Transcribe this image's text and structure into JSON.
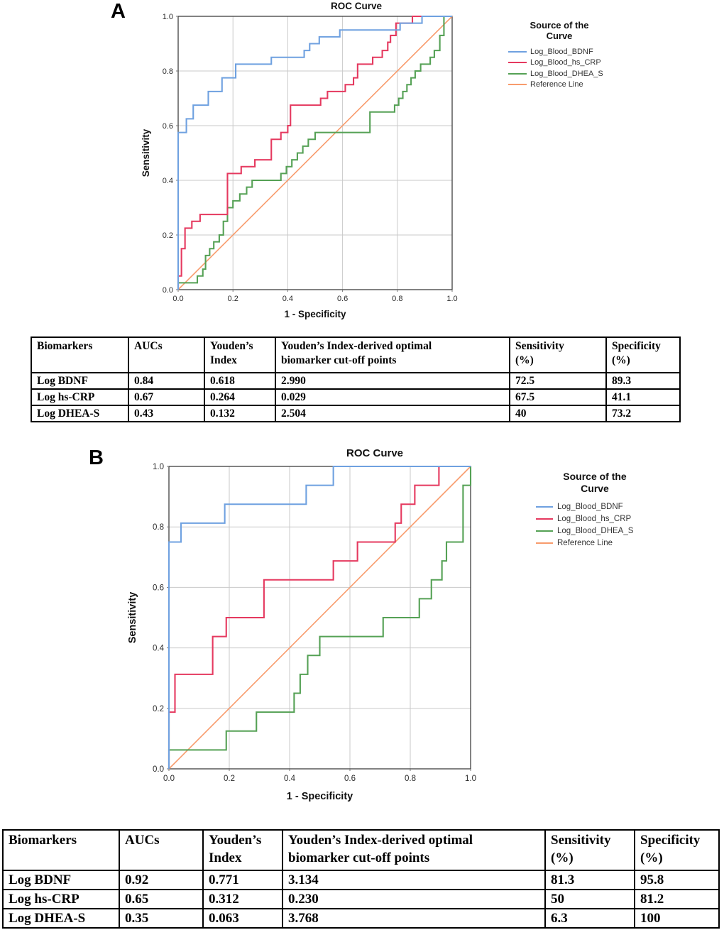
{
  "panel_a": {
    "label": "A",
    "legend": {
      "title": "Source of the\nCurve",
      "items": [
        "Log_Blood_BDNF",
        "Log_Blood_hs_CRP",
        "Log_Blood_DHEA_S",
        "Reference Line"
      ]
    }
  },
  "panel_b": {
    "label": "B",
    "legend": {
      "title": "Source of the\nCurve",
      "items": [
        "Log_Blood_BDNF",
        "Log_Blood_hs_CRP",
        "Log_Blood_DHEA_S",
        "Reference Line"
      ]
    }
  },
  "colors": {
    "bdnf": "#6fa1e0",
    "hscrp": "#e5395f",
    "dheas": "#55a155",
    "reference": "#f89b6c",
    "grid": "#cacaca",
    "frame": "#3f3f3f",
    "tick_text": "#2b2b2b"
  },
  "chart_data": [
    {
      "panel": "A",
      "type": "line",
      "subtype": "roc_step",
      "title": "ROC Curve",
      "xlabel": "1 - Specificity",
      "ylabel": "Sensitivity",
      "xlim": [
        0,
        1
      ],
      "ylim": [
        0,
        1
      ],
      "xticks": [
        0.0,
        0.2,
        0.4,
        0.6,
        0.8,
        1.0
      ],
      "yticks": [
        0.0,
        0.2,
        0.4,
        0.6,
        0.8,
        1.0
      ],
      "grid": true,
      "legend_position": "right",
      "series": [
        {
          "name": "Log_Blood_BDNF",
          "color": "#6fa1e0",
          "step": true,
          "points": [
            [
              0,
              0
            ],
            [
              0,
              0.575
            ],
            [
              0.03,
              0.625
            ],
            [
              0.055,
              0.675
            ],
            [
              0.11,
              0.725
            ],
            [
              0.16,
              0.775
            ],
            [
              0.21,
              0.825
            ],
            [
              0.34,
              0.85
            ],
            [
              0.46,
              0.875
            ],
            [
              0.48,
              0.9
            ],
            [
              0.515,
              0.925
            ],
            [
              0.59,
              0.95
            ],
            [
              0.81,
              0.975
            ],
            [
              0.89,
              1
            ],
            [
              1,
              1
            ]
          ]
        },
        {
          "name": "Log_Blood_hs_CRP",
          "color": "#e5395f",
          "step": true,
          "points": [
            [
              0,
              0
            ],
            [
              0,
              0.05
            ],
            [
              0.012,
              0.15
            ],
            [
              0.025,
              0.225
            ],
            [
              0.05,
              0.25
            ],
            [
              0.08,
              0.275
            ],
            [
              0.18,
              0.425
            ],
            [
              0.23,
              0.45
            ],
            [
              0.28,
              0.475
            ],
            [
              0.34,
              0.55
            ],
            [
              0.375,
              0.575
            ],
            [
              0.4,
              0.6
            ],
            [
              0.41,
              0.675
            ],
            [
              0.52,
              0.7
            ],
            [
              0.545,
              0.725
            ],
            [
              0.61,
              0.75
            ],
            [
              0.64,
              0.775
            ],
            [
              0.655,
              0.825
            ],
            [
              0.71,
              0.85
            ],
            [
              0.745,
              0.875
            ],
            [
              0.765,
              0.905
            ],
            [
              0.775,
              0.93
            ],
            [
              0.795,
              0.975
            ],
            [
              0.855,
              1
            ],
            [
              1,
              1
            ]
          ]
        },
        {
          "name": "Log_Blood_DHEA_S",
          "color": "#55a155",
          "step": true,
          "points": [
            [
              0,
              0
            ],
            [
              0,
              0.025
            ],
            [
              0.07,
              0.05
            ],
            [
              0.09,
              0.075
            ],
            [
              0.1,
              0.125
            ],
            [
              0.115,
              0.15
            ],
            [
              0.13,
              0.175
            ],
            [
              0.15,
              0.2
            ],
            [
              0.165,
              0.25
            ],
            [
              0.18,
              0.3
            ],
            [
              0.2,
              0.325
            ],
            [
              0.225,
              0.35
            ],
            [
              0.25,
              0.375
            ],
            [
              0.27,
              0.4
            ],
            [
              0.375,
              0.425
            ],
            [
              0.395,
              0.45
            ],
            [
              0.415,
              0.475
            ],
            [
              0.435,
              0.5
            ],
            [
              0.455,
              0.525
            ],
            [
              0.475,
              0.55
            ],
            [
              0.5,
              0.575
            ],
            [
              0.7,
              0.65
            ],
            [
              0.79,
              0.675
            ],
            [
              0.805,
              0.7
            ],
            [
              0.82,
              0.725
            ],
            [
              0.835,
              0.75
            ],
            [
              0.85,
              0.775
            ],
            [
              0.865,
              0.8
            ],
            [
              0.885,
              0.825
            ],
            [
              0.92,
              0.85
            ],
            [
              0.935,
              0.875
            ],
            [
              0.955,
              0.93
            ],
            [
              0.97,
              1
            ],
            [
              1,
              1
            ]
          ]
        },
        {
          "name": "Reference Line",
          "color": "#f89b6c",
          "step": false,
          "points": [
            [
              0,
              0
            ],
            [
              1,
              1
            ]
          ]
        }
      ]
    },
    {
      "panel": "B",
      "type": "line",
      "subtype": "roc_step",
      "title": "ROC Curve",
      "xlabel": "1 - Specificity",
      "ylabel": "Sensitivity",
      "xlim": [
        0,
        1
      ],
      "ylim": [
        0,
        1
      ],
      "xticks": [
        0.0,
        0.2,
        0.4,
        0.6,
        0.8,
        1.0
      ],
      "yticks": [
        0.0,
        0.2,
        0.4,
        0.6,
        0.8,
        1.0
      ],
      "grid": true,
      "legend_position": "right",
      "series": [
        {
          "name": "Log_Blood_BDNF",
          "color": "#6fa1e0",
          "step": true,
          "points": [
            [
              0,
              0
            ],
            [
              0,
              0.75
            ],
            [
              0.04,
              0.8125
            ],
            [
              0.185,
              0.875
            ],
            [
              0.455,
              0.9375
            ],
            [
              0.545,
              1
            ],
            [
              1,
              1
            ]
          ]
        },
        {
          "name": "Log_Blood_hs_CRP",
          "color": "#e5395f",
          "step": true,
          "points": [
            [
              0,
              0
            ],
            [
              0,
              0.1875
            ],
            [
              0.02,
              0.3125
            ],
            [
              0.145,
              0.4375
            ],
            [
              0.19,
              0.5
            ],
            [
              0.315,
              0.625
            ],
            [
              0.545,
              0.6875
            ],
            [
              0.625,
              0.75
            ],
            [
              0.75,
              0.8125
            ],
            [
              0.77,
              0.875
            ],
            [
              0.815,
              0.9375
            ],
            [
              0.895,
              1
            ],
            [
              1,
              1
            ]
          ]
        },
        {
          "name": "Log_Blood_DHEA_S",
          "color": "#55a155",
          "step": true,
          "points": [
            [
              0,
              0
            ],
            [
              0,
              0.0625
            ],
            [
              0.19,
              0.125
            ],
            [
              0.29,
              0.1875
            ],
            [
              0.415,
              0.25
            ],
            [
              0.435,
              0.3125
            ],
            [
              0.46,
              0.375
            ],
            [
              0.5,
              0.4375
            ],
            [
              0.71,
              0.5
            ],
            [
              0.83,
              0.5625
            ],
            [
              0.87,
              0.625
            ],
            [
              0.905,
              0.6875
            ],
            [
              0.92,
              0.75
            ],
            [
              0.975,
              0.9375
            ],
            [
              1,
              1
            ]
          ]
        },
        {
          "name": "Reference Line",
          "color": "#f89b6c",
          "step": false,
          "points": [
            [
              0,
              0
            ],
            [
              1,
              1
            ]
          ]
        }
      ]
    }
  ],
  "table_a": {
    "headers": [
      "Biomarkers",
      "AUCs",
      "Youden’s\nIndex",
      "Youden’s Index-derived optimal\nbiomarker cut-off points",
      "Sensitivity\n(%)",
      "Specificity\n(%)"
    ],
    "rows": [
      [
        "Log BDNF",
        "0.84",
        "0.618",
        "2.990",
        "72.5",
        "89.3"
      ],
      [
        "Log hs-CRP",
        "0.67",
        "0.264",
        "0.029",
        "67.5",
        "41.1"
      ],
      [
        "Log DHEA-S",
        "0.43",
        "0.132",
        "2.504",
        "40",
        "73.2"
      ]
    ]
  },
  "table_b": {
    "headers": [
      "Biomarkers",
      "AUCs",
      "Youden’s\nIndex",
      "Youden’s Index-derived optimal\nbiomarker cut-off points",
      "Sensitivity\n(%)",
      "Specificity\n(%)"
    ],
    "rows": [
      [
        "Log BDNF",
        "0.92",
        "0.771",
        "3.134",
        "81.3",
        "95.8"
      ],
      [
        "Log hs-CRP",
        "0.65",
        "0.312",
        "0.230",
        "50",
        "81.2"
      ],
      [
        "Log DHEA-S",
        "0.35",
        "0.063",
        "3.768",
        "6.3",
        "100"
      ]
    ]
  }
}
